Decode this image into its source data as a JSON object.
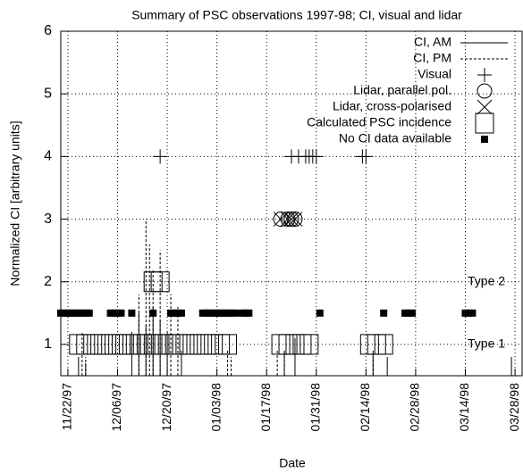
{
  "chart_data": {
    "type": "scatter",
    "title": "Summary of PSC observations 1997-98; CI, visual and lidar",
    "x_label": "Date",
    "y_label": "Normalized CI [arbitrary units]",
    "xlim": [
      "11/20/97",
      "03/30/98"
    ],
    "xticks": [
      "11/22/97",
      "12/06/97",
      "12/20/97",
      "01/03/98",
      "01/17/98",
      "01/31/98",
      "02/14/98",
      "02/28/98",
      "03/14/98",
      "03/28/98"
    ],
    "ylim": [
      0.5,
      6
    ],
    "yticks": [
      1,
      2,
      3,
      4,
      5,
      6
    ],
    "grid": true,
    "annotations": [
      {
        "text": "Type 2",
        "y": 2
      },
      {
        "text": "Type 1",
        "y": 1
      }
    ],
    "series": [
      {
        "name": "CI, AM",
        "marker": "impulse",
        "dash": false,
        "color": "#000",
        "x": [
          "11/25/97",
          "11/27/97",
          "12/10/97",
          "12/12/97",
          "12/14/97",
          "12/16/97",
          "12/18/97",
          "12/20/97",
          "12/24/97",
          "01/22/98",
          "01/25/98",
          "02/16/98",
          "02/20/98",
          "03/27/98"
        ],
        "values": [
          0.8,
          0.7,
          1.2,
          1.5,
          1.3,
          1.6,
          1.4,
          1.2,
          0.9,
          0.9,
          1.1,
          0.9,
          0.8,
          0.8
        ]
      },
      {
        "name": "CI, PM",
        "marker": "impulse",
        "dash": true,
        "color": "#000",
        "x": [
          "11/26/97",
          "11/27/97",
          "12/12/97",
          "12/14/97",
          "12/15/97",
          "12/16/97",
          "12/18/97",
          "12/21/97",
          "12/23/97",
          "01/06/98",
          "01/07/98",
          "01/20/98",
          "01/22/98",
          "02/16/98"
        ],
        "values": [
          1.2,
          0.8,
          1.8,
          3.0,
          2.6,
          2.2,
          2.5,
          1.8,
          1.6,
          0.9,
          0.8,
          0.9,
          0.9,
          0.8
        ]
      },
      {
        "name": "Visual",
        "marker": "plus",
        "color": "#000",
        "x": [
          "12/18/97",
          "01/24/98",
          "01/26/98",
          "01/28/98",
          "01/29/98",
          "01/30/98",
          "01/31/98",
          "02/13/98",
          "02/14/98"
        ],
        "values": [
          4,
          4,
          4,
          4,
          4,
          4,
          4,
          4,
          4
        ]
      },
      {
        "name": "Lidar, parallel pol.",
        "marker": "circle",
        "color": "#000",
        "x": [
          "01/21/98",
          "01/23/98",
          "01/24/98",
          "01/25/98"
        ],
        "values": [
          3,
          3,
          3,
          3
        ]
      },
      {
        "name": "Lidar, cross-polarised",
        "marker": "cross",
        "color": "#000",
        "x": [
          "01/21/98",
          "01/23/98",
          "01/24/98",
          "01/25/98"
        ],
        "values": [
          3,
          3,
          3,
          3
        ]
      },
      {
        "name": "Calculated PSC incidence",
        "marker": "square",
        "color": "#000",
        "x": [
          "11/25/97",
          "11/27/97",
          "11/29/97",
          "12/01/97",
          "12/03/97",
          "12/05/97",
          "12/07/97",
          "12/09/97",
          "12/11/97",
          "12/13/97",
          "12/15/97",
          "12/17/97",
          "12/19/97",
          "12/21/97",
          "12/23/97",
          "12/25/97",
          "12/27/97",
          "12/29/97",
          "12/31/97",
          "01/02/98",
          "01/04/98",
          "01/06/98",
          "01/21/98",
          "01/23/98",
          "01/25/98",
          "01/27/98",
          "01/29/98",
          "02/15/98",
          "02/17/98",
          "02/19/98",
          "12/16/97",
          "12/18/97"
        ],
        "values": [
          1,
          1,
          1,
          1,
          1,
          1,
          1,
          1,
          1,
          1,
          1,
          1,
          1,
          1,
          1,
          1,
          1,
          1,
          1,
          1,
          1,
          1,
          1,
          1,
          1,
          1,
          1,
          1,
          1,
          1,
          2,
          2
        ]
      },
      {
        "name": "No CI data available",
        "marker": "filled-square",
        "color": "#000",
        "x": [
          "11/20/97",
          "11/21/97",
          "11/22/97",
          "11/23/97",
          "11/24/97",
          "11/25/97",
          "11/26/97",
          "11/27/97",
          "11/28/97",
          "12/04/97",
          "12/05/97",
          "12/06/97",
          "12/07/97",
          "12/10/97",
          "12/16/97",
          "12/21/97",
          "12/22/97",
          "12/23/97",
          "12/24/97",
          "12/30/97",
          "12/31/97",
          "01/01/98",
          "01/02/98",
          "01/03/98",
          "01/04/98",
          "01/05/98",
          "01/06/98",
          "01/07/98",
          "01/08/98",
          "01/10/98",
          "01/11/98",
          "01/12/98",
          "02/01/98",
          "02/19/98",
          "02/25/98",
          "02/26/98",
          "02/27/98",
          "03/14/98",
          "03/15/98",
          "03/16/98"
        ],
        "values": [
          1.5,
          1.5,
          1.5,
          1.5,
          1.5,
          1.5,
          1.5,
          1.5,
          1.5,
          1.5,
          1.5,
          1.5,
          1.5,
          1.5,
          1.5,
          1.5,
          1.5,
          1.5,
          1.5,
          1.5,
          1.5,
          1.5,
          1.5,
          1.5,
          1.5,
          1.5,
          1.5,
          1.5,
          1.5,
          1.5,
          1.5,
          1.5,
          1.5,
          1.5,
          1.5,
          1.5,
          1.5,
          1.5,
          1.5,
          1.5
        ]
      }
    ]
  }
}
